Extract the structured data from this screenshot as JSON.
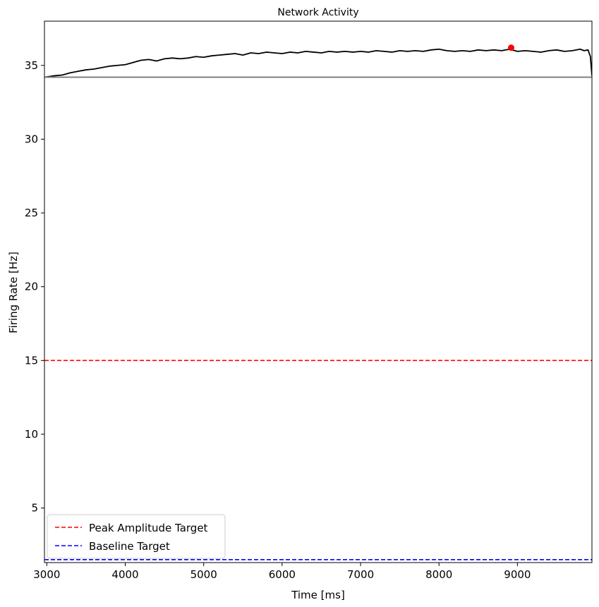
{
  "chart_data": {
    "type": "line",
    "title": "Network Activity",
    "xlabel": "Time [ms]",
    "ylabel": "Firing Rate [Hz]",
    "xlim": [
      2970,
      9950
    ],
    "ylim": [
      1.3,
      38.0
    ],
    "xticks": [
      3000,
      4000,
      5000,
      6000,
      7000,
      8000,
      9000
    ],
    "yticks": [
      5,
      10,
      15,
      20,
      25,
      30,
      35
    ],
    "grid": false,
    "legend_position": "lower-left",
    "series": [
      {
        "color": "#000000",
        "x": [
          2970,
          3100,
          3200,
          3300,
          3400,
          3500,
          3600,
          3700,
          3800,
          3900,
          4000,
          4100,
          4200,
          4300,
          4400,
          4500,
          4600,
          4700,
          4800,
          4900,
          5000,
          5100,
          5200,
          5300,
          5400,
          5500,
          5600,
          5700,
          5800,
          5900,
          6000,
          6100,
          6200,
          6300,
          6400,
          6500,
          6600,
          6700,
          6800,
          6900,
          7000,
          7100,
          7200,
          7300,
          7400,
          7500,
          7600,
          7700,
          7800,
          7900,
          8000,
          8100,
          8200,
          8300,
          8400,
          8500,
          8600,
          8700,
          8800,
          8900,
          9000,
          9100,
          9200,
          9300,
          9400,
          9500,
          9600,
          9700,
          9800,
          9850,
          9900,
          9930,
          9950
        ],
        "y": [
          34.2,
          34.3,
          34.35,
          34.5,
          34.6,
          34.7,
          34.75,
          34.85,
          34.95,
          35.0,
          35.05,
          35.2,
          35.35,
          35.4,
          35.3,
          35.45,
          35.5,
          35.45,
          35.5,
          35.6,
          35.55,
          35.65,
          35.7,
          35.75,
          35.8,
          35.7,
          35.85,
          35.8,
          35.9,
          35.85,
          35.8,
          35.9,
          35.85,
          35.95,
          35.9,
          35.85,
          35.95,
          35.9,
          35.95,
          35.9,
          35.95,
          35.9,
          36.0,
          35.95,
          35.9,
          36.0,
          35.95,
          36.0,
          35.95,
          36.05,
          36.1,
          36.0,
          35.95,
          36.0,
          35.95,
          36.05,
          36.0,
          36.05,
          36.0,
          36.1,
          35.95,
          36.0,
          35.95,
          35.9,
          36.0,
          36.05,
          35.95,
          36.0,
          36.1,
          36.0,
          36.05,
          35.6,
          34.3
        ]
      },
      {
        "color": "#808080",
        "x": [
          2970,
          9950
        ],
        "y": [
          34.2,
          34.2
        ]
      }
    ],
    "peak_point": {
      "x": 8920,
      "y": 36.2,
      "color": "#ff0000"
    },
    "hlines": [
      {
        "name": "Peak Amplitude Target",
        "y": 15.0,
        "color": "#ff0000",
        "style": "dashed"
      },
      {
        "name": "Baseline Target",
        "y": 1.5,
        "color": "#0000ff",
        "style": "dashed"
      }
    ]
  }
}
